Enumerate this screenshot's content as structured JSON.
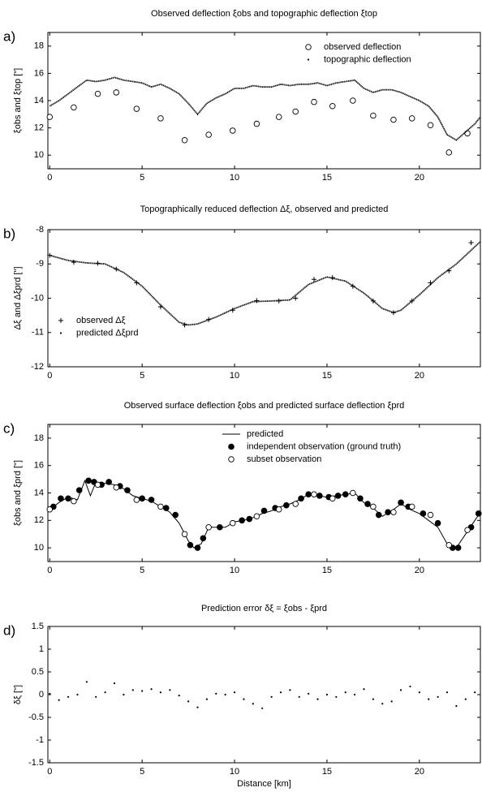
{
  "chart_data": [
    {
      "type": "line",
      "label": "a)",
      "title": "Observed deflection ξobs and topographic deflection ξtop",
      "ylabel": "ξobs and ξtop [\"]",
      "xlim": [
        -0.1,
        23.3
      ],
      "xticks": [
        0,
        5,
        10,
        15,
        20
      ],
      "ylim": [
        9,
        19
      ],
      "yticks": [
        10,
        12,
        14,
        16,
        18
      ],
      "legend": "upper right",
      "color": "#000000",
      "series": [
        {
          "name": "observed deflection",
          "marker": "circle-open",
          "x": [
            0,
            1.3,
            2.6,
            3.6,
            4.7,
            6.0,
            7.3,
            8.6,
            9.9,
            11.2,
            12.4,
            13.3,
            14.3,
            15.3,
            16.4,
            17.5,
            18.6,
            19.6,
            20.6,
            21.6,
            22.6
          ],
          "values": [
            12.8,
            13.5,
            14.5,
            14.6,
            13.4,
            12.7,
            11.1,
            11.5,
            11.8,
            12.3,
            12.8,
            13.2,
            13.9,
            13.6,
            14.0,
            12.9,
            12.6,
            12.7,
            12.2,
            10.2,
            11.6
          ]
        },
        {
          "name": "topographic deflection",
          "marker": "dotline",
          "x": [
            0,
            0.5,
            1,
            1.5,
            2,
            2.5,
            3,
            3.5,
            4,
            4.5,
            5,
            5.5,
            6,
            6.5,
            7,
            7.5,
            8,
            8.5,
            9,
            9.5,
            10,
            10.5,
            11,
            11.5,
            12,
            12.5,
            13,
            13.5,
            14,
            14.5,
            15,
            15.5,
            16,
            16.5,
            17,
            17.5,
            18,
            18.5,
            19,
            19.5,
            20,
            20.5,
            21,
            21.5,
            22,
            22.5,
            23,
            23.3
          ],
          "values": [
            13.6,
            14.0,
            14.5,
            15.0,
            15.5,
            15.4,
            15.5,
            15.7,
            15.5,
            15.4,
            15.3,
            15.0,
            15.2,
            14.9,
            14.5,
            13.8,
            13.0,
            13.8,
            14.2,
            14.5,
            14.9,
            14.9,
            15.1,
            15.0,
            15.0,
            15.2,
            15.1,
            15.2,
            15.2,
            15.3,
            15.1,
            15.3,
            15.4,
            15.5,
            14.9,
            14.6,
            14.8,
            14.8,
            14.6,
            14.3,
            14.0,
            13.6,
            12.8,
            11.5,
            11.1,
            11.7,
            12.3,
            12.8
          ]
        }
      ]
    },
    {
      "type": "line",
      "label": "b)",
      "title": "Topographically reduced deflection Δξ, observed and predicted",
      "ylabel": "Δξ and Δξprd [\"]",
      "xlim": [
        -0.1,
        23.3
      ],
      "xticks": [
        0,
        5,
        10,
        15,
        20
      ],
      "ylim": [
        -12,
        -8
      ],
      "yticks": [
        -12,
        -11,
        -10,
        -9,
        -8
      ],
      "legend": "lower left",
      "color": "#000000",
      "series": [
        {
          "name": "observed Δξ",
          "marker": "plus",
          "x": [
            0,
            1.3,
            2.6,
            3.6,
            4.7,
            6.0,
            7.3,
            8.6,
            9.9,
            11.2,
            12.4,
            13.3,
            14.3,
            15.3,
            16.4,
            17.5,
            18.6,
            19.6,
            20.6,
            21.6,
            22.8
          ],
          "values": [
            -8.75,
            -8.95,
            -8.98,
            -9.15,
            -9.55,
            -10.25,
            -10.78,
            -10.62,
            -10.35,
            -10.07,
            -10.08,
            -10.0,
            -9.45,
            -9.4,
            -9.65,
            -10.08,
            -10.42,
            -10.08,
            -9.55,
            -9.2,
            -8.38
          ]
        },
        {
          "name": "predicted Δξprd",
          "marker": "dotline",
          "x": [
            0,
            1,
            2,
            3,
            4,
            5,
            6,
            7,
            7.5,
            8,
            9,
            10,
            11,
            12,
            13,
            14,
            15,
            16,
            17,
            18,
            18.6,
            19,
            20,
            21,
            22,
            23,
            23.3
          ],
          "values": [
            -8.75,
            -8.9,
            -8.97,
            -9.0,
            -9.25,
            -9.65,
            -10.2,
            -10.7,
            -10.78,
            -10.75,
            -10.55,
            -10.3,
            -10.1,
            -10.08,
            -10.05,
            -9.6,
            -9.38,
            -9.5,
            -9.85,
            -10.3,
            -10.42,
            -10.35,
            -9.9,
            -9.4,
            -9.0,
            -8.5,
            -8.35
          ]
        }
      ]
    },
    {
      "type": "line",
      "label": "c)",
      "title": "Observed surface deflection ξobs and predicted surface deflection ξprd",
      "ylabel": "ξobs and ξprd [\"]",
      "xlim": [
        -0.1,
        23.3
      ],
      "xticks": [
        0,
        5,
        10,
        15,
        20
      ],
      "ylim": [
        9,
        19
      ],
      "yticks": [
        10,
        12,
        14,
        16,
        18
      ],
      "legend": "upper center",
      "color": "#000000",
      "series": [
        {
          "name": "predicted",
          "marker": "line",
          "x": [
            0,
            0.5,
            1,
            1.5,
            1.9,
            2.2,
            2.5,
            3,
            3.5,
            4,
            4.5,
            5,
            5.5,
            6,
            6.5,
            7,
            7.5,
            7.8,
            8.2,
            8.6,
            9,
            9.5,
            10,
            10.5,
            11,
            11.5,
            12,
            12.5,
            13,
            13.5,
            14,
            14.5,
            15,
            15.5,
            16,
            16.5,
            17,
            17.5,
            18,
            18.5,
            19,
            19.5,
            20,
            20.5,
            21,
            21.5,
            22,
            22.5,
            23,
            23.3
          ],
          "values": [
            12.8,
            13.3,
            13.7,
            13.5,
            14.9,
            13.8,
            14.8,
            14.7,
            14.6,
            14.3,
            13.8,
            13.6,
            13.4,
            13.0,
            12.6,
            11.8,
            10.5,
            10.0,
            10.3,
            11.5,
            11.5,
            11.5,
            11.9,
            12.0,
            12.2,
            12.5,
            12.7,
            13.0,
            13.2,
            13.5,
            13.9,
            13.8,
            13.7,
            13.8,
            13.9,
            14.0,
            13.3,
            12.9,
            12.3,
            12.7,
            13.2,
            12.8,
            12.5,
            12.0,
            11.5,
            10.3,
            10.0,
            11.0,
            12.0,
            12.6
          ]
        },
        {
          "name": "independent observation (ground truth)",
          "marker": "circle-filled",
          "x": [
            0.2,
            0.6,
            1.0,
            1.6,
            2.1,
            2.4,
            2.8,
            3.2,
            3.8,
            4.2,
            5.0,
            5.5,
            6.3,
            6.8,
            7.6,
            8.0,
            8.3,
            9.2,
            10.4,
            10.8,
            11.6,
            12.2,
            12.8,
            13.6,
            14.0,
            14.6,
            15.1,
            15.6,
            16.0,
            16.8,
            17.2,
            17.8,
            18.3,
            19.0,
            19.4,
            20.2,
            21.0,
            21.8,
            22.1,
            22.8,
            23.2
          ],
          "values": [
            13.0,
            13.6,
            13.6,
            14.2,
            14.9,
            14.8,
            14.6,
            14.8,
            14.5,
            14.2,
            13.6,
            13.5,
            12.9,
            12.4,
            10.2,
            10.0,
            10.7,
            11.5,
            12.0,
            12.1,
            12.7,
            12.9,
            13.1,
            13.6,
            13.9,
            13.8,
            13.7,
            13.8,
            13.9,
            13.6,
            13.2,
            12.4,
            12.6,
            13.3,
            13.0,
            12.5,
            11.8,
            10.0,
            10.0,
            11.5,
            12.5
          ]
        },
        {
          "name": "subset observation",
          "marker": "circle-open",
          "x": [
            0,
            1.3,
            2.6,
            3.6,
            4.7,
            6.0,
            7.3,
            8.6,
            9.9,
            11.2,
            12.4,
            13.3,
            14.3,
            15.3,
            16.4,
            17.5,
            18.6,
            19.6,
            20.6,
            21.6,
            22.6
          ],
          "values": [
            12.8,
            13.4,
            14.6,
            14.4,
            13.5,
            13.0,
            11.0,
            11.5,
            11.8,
            12.3,
            12.8,
            13.2,
            13.9,
            13.6,
            14.0,
            13.0,
            12.6,
            13.0,
            12.4,
            10.2,
            11.3
          ]
        }
      ]
    },
    {
      "type": "scatter",
      "label": "d)",
      "title": "Prediction error δξ = ξobs - ξprd",
      "ylabel": "δξ [\"]",
      "xlabel": "Distance [km]",
      "xlim": [
        -0.1,
        23.3
      ],
      "xticks": [
        0,
        5,
        10,
        15,
        20
      ],
      "ylim": [
        -1.5,
        1.5
      ],
      "yticks": [
        -1.5,
        -1,
        -0.5,
        0,
        0.5,
        1,
        1.5
      ],
      "color": "#000000",
      "series": [
        {
          "marker": "dot",
          "x": [
            0,
            0.5,
            1,
            1.5,
            2,
            2.5,
            3,
            3.5,
            4,
            4.5,
            5,
            5.5,
            6,
            6.5,
            7,
            7.5,
            8,
            8.5,
            9,
            9.5,
            10,
            10.5,
            11,
            11.5,
            12,
            12.5,
            13,
            13.5,
            14,
            14.5,
            15,
            15.5,
            16,
            16.5,
            17,
            17.5,
            18,
            18.5,
            19,
            19.5,
            20,
            20.5,
            21,
            21.5,
            22,
            22.5,
            23
          ],
          "values": [
            0.02,
            -0.12,
            -0.05,
            0.0,
            0.28,
            -0.05,
            0.05,
            0.25,
            0.0,
            0.1,
            0.08,
            0.12,
            0.05,
            0.1,
            -0.02,
            -0.15,
            -0.28,
            -0.1,
            0.02,
            0.0,
            0.05,
            -0.1,
            -0.2,
            -0.3,
            -0.05,
            0.05,
            0.1,
            -0.05,
            0.02,
            -0.1,
            0.0,
            -0.05,
            0.05,
            0.0,
            0.12,
            -0.1,
            -0.2,
            -0.15,
            0.1,
            0.18,
            0.05,
            -0.1,
            -0.05,
            0.05,
            -0.25,
            -0.1,
            0.05
          ]
        }
      ]
    }
  ]
}
